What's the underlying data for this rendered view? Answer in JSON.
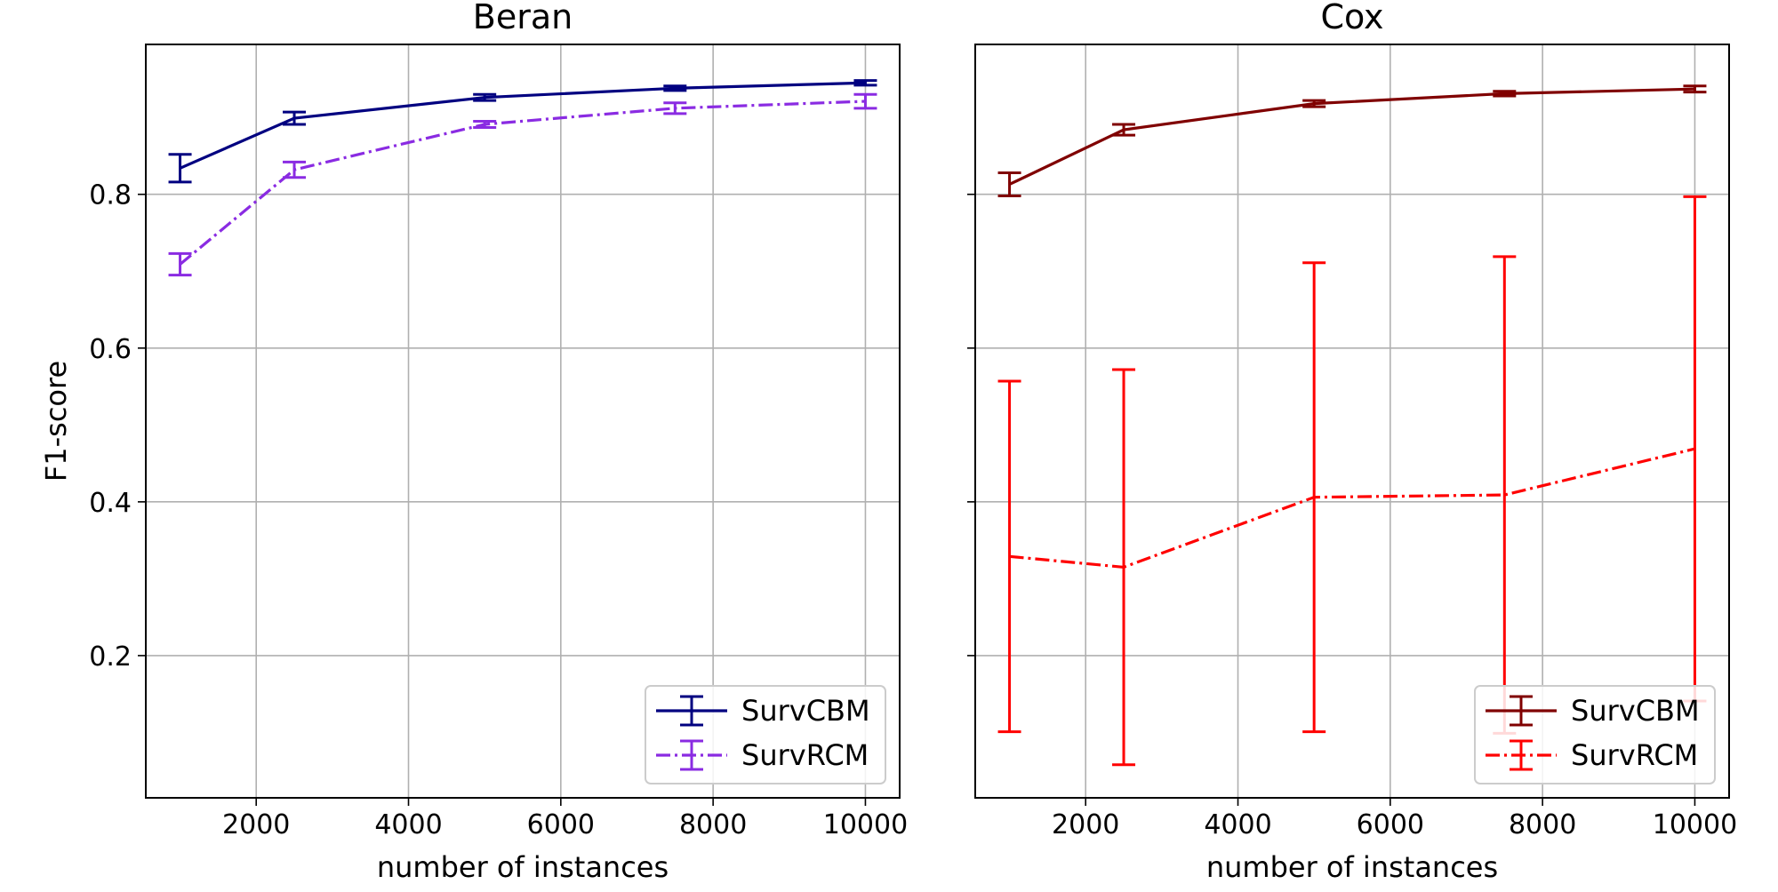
{
  "chart_data": [
    {
      "type": "line",
      "title": "Beran",
      "xlabel": "number of instances",
      "ylabel": "F1-score",
      "xlim": [
        550,
        10450
      ],
      "ylim": [
        0.015,
        0.995
      ],
      "xticks": [
        2000,
        4000,
        6000,
        8000,
        10000
      ],
      "yticks": [
        0.2,
        0.4,
        0.6,
        0.8
      ],
      "xtick_labels": [
        "2000",
        "4000",
        "6000",
        "8000",
        "10000"
      ],
      "ytick_labels": [
        "0.2",
        "0.4",
        "0.6",
        "0.8"
      ],
      "grid": true,
      "legend_position": "lower-right",
      "x": [
        1000,
        2500,
        5000,
        7500,
        10000
      ],
      "series": [
        {
          "name": "SurvCBM",
          "values": [
            0.834,
            0.899,
            0.926,
            0.938,
            0.945
          ],
          "errors": [
            0.018,
            0.008,
            0.004,
            0.003,
            0.003
          ],
          "color": "#000080",
          "linestyle": "solid"
        },
        {
          "name": "SurvRCM",
          "values": [
            0.709,
            0.832,
            0.891,
            0.912,
            0.921
          ],
          "errors": [
            0.014,
            0.01,
            0.004,
            0.007,
            0.009
          ],
          "color": "#8a2be2",
          "linestyle": "dashdot"
        }
      ]
    },
    {
      "type": "line",
      "title": "Cox",
      "xlabel": "number of instances",
      "ylabel": "",
      "xlim": [
        550,
        10450
      ],
      "ylim": [
        0.015,
        0.995
      ],
      "xticks": [
        2000,
        4000,
        6000,
        8000,
        10000
      ],
      "yticks": [
        0.2,
        0.4,
        0.6,
        0.8
      ],
      "xtick_labels": [
        "2000",
        "4000",
        "6000",
        "8000",
        "10000"
      ],
      "ytick_labels": [],
      "grid": true,
      "legend_position": "lower-right",
      "x": [
        1000,
        2500,
        5000,
        7500,
        10000
      ],
      "series": [
        {
          "name": "SurvCBM",
          "values": [
            0.813,
            0.884,
            0.918,
            0.931,
            0.937
          ],
          "errors": [
            0.015,
            0.007,
            0.004,
            0.003,
            0.004
          ],
          "color": "#800000",
          "linestyle": "solid"
        },
        {
          "name": "SurvRCM",
          "values": [
            0.329,
            0.315,
            0.406,
            0.409,
            0.469
          ],
          "errors": [
            0.228,
            0.257,
            0.305,
            0.31,
            0.328
          ],
          "color": "#ff0000",
          "linestyle": "dashdot"
        }
      ]
    }
  ]
}
